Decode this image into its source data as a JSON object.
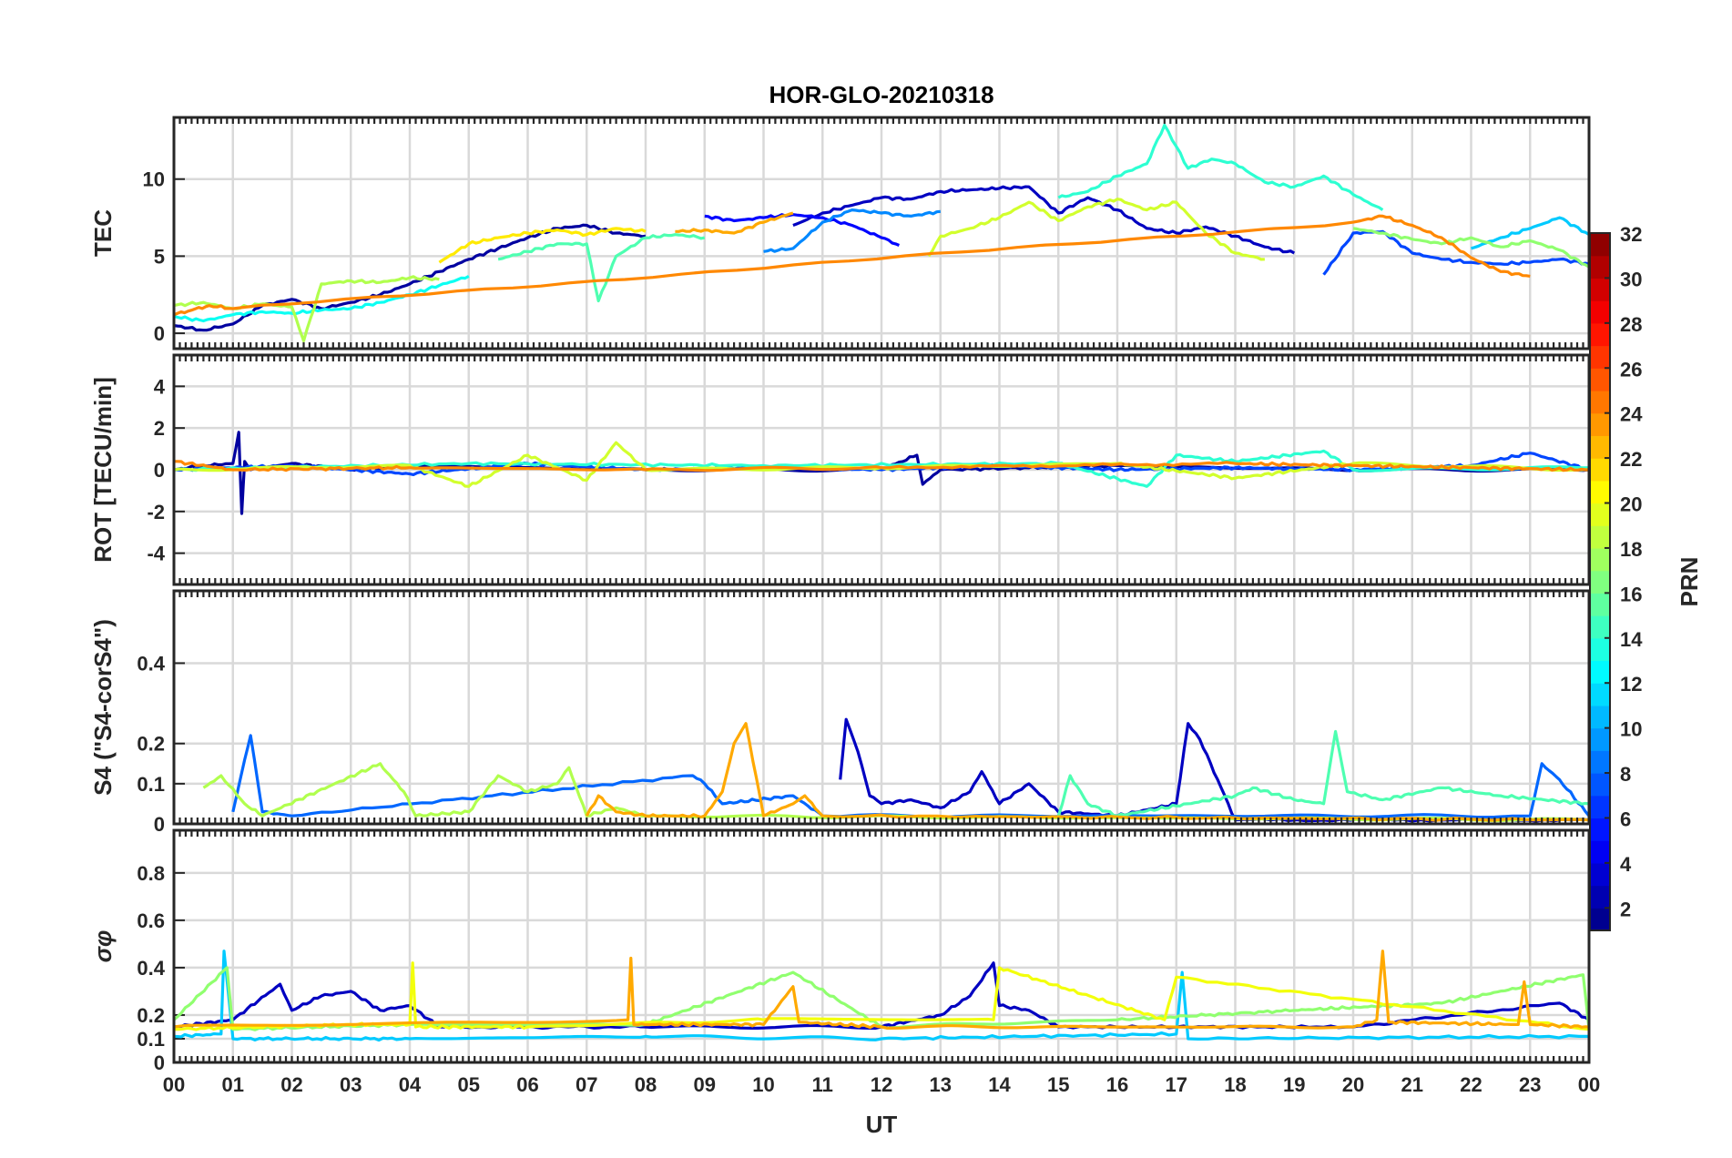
{
  "chart_data": {
    "type": "line",
    "title": "HOR-GLO-20210318",
    "xlabel": "UT",
    "x_ticks": [
      "00",
      "01",
      "02",
      "03",
      "04",
      "05",
      "06",
      "07",
      "08",
      "09",
      "10",
      "11",
      "12",
      "13",
      "14",
      "15",
      "16",
      "17",
      "18",
      "19",
      "20",
      "21",
      "22",
      "23",
      "00"
    ],
    "xlim": [
      0,
      24
    ],
    "colorbar": {
      "label": "PRN",
      "range": [
        1,
        32
      ],
      "ticks": [
        "2",
        "4",
        "6",
        "8",
        "10",
        "12",
        "14",
        "16",
        "18",
        "20",
        "22",
        "24",
        "26",
        "28",
        "30",
        "32"
      ],
      "colormap": "jet"
    },
    "panels": [
      {
        "id": "tec",
        "ylabel": "TEC",
        "ylim": [
          -1,
          14
        ],
        "yticks": [
          0,
          5,
          10
        ],
        "ytick_labels": [
          "0",
          "5",
          "10"
        ],
        "series": [
          {
            "prn": 2,
            "x": [
              0,
              0.5,
              1,
              1.5,
              2,
              2.5,
              3,
              3.5,
              4,
              4.5,
              5,
              5.5,
              6,
              6.5,
              7,
              7.5,
              8
            ],
            "y": [
              0.5,
              0.2,
              0.6,
              1.8,
              2.2,
              1.6,
              2.0,
              2.5,
              3.2,
              4.0,
              4.8,
              5.5,
              6.2,
              6.8,
              7.0,
              6.5,
              6.3
            ]
          },
          {
            "prn": 3,
            "x": [
              10.5,
              11,
              11.5,
              12,
              12.5,
              13,
              13.5,
              14,
              14.5,
              15,
              15.5,
              16,
              16.5,
              17,
              17.5,
              18,
              18.5,
              19
            ],
            "y": [
              7.0,
              7.8,
              8.3,
              8.8,
              8.7,
              9.2,
              9.3,
              9.4,
              9.5,
              7.8,
              8.8,
              8.0,
              6.8,
              6.5,
              6.9,
              6.3,
              5.6,
              5.2
            ]
          },
          {
            "prn": 5,
            "x": [
              9,
              9.5,
              10,
              10.5,
              11,
              11.5,
              12,
              12.3
            ],
            "y": [
              7.6,
              7.3,
              7.5,
              7.7,
              7.5,
              7.0,
              6.2,
              5.7
            ]
          },
          {
            "prn": 7,
            "x": [
              19.5,
              20,
              20.5,
              21,
              21.5,
              22,
              22.5,
              23,
              23.5,
              24
            ],
            "y": [
              3.8,
              6.5,
              6.6,
              5.2,
              4.8,
              4.6,
              4.5,
              4.6,
              4.8,
              4.5
            ]
          },
          {
            "prn": 9,
            "x": [
              10,
              10.5,
              11,
              11.5,
              12,
              12.5,
              13
            ],
            "y": [
              5.3,
              5.5,
              7.2,
              8.0,
              7.8,
              7.6,
              7.9
            ]
          },
          {
            "prn": 11,
            "x": [
              22,
              22.5,
              23,
              23.5,
              24
            ],
            "y": [
              5.5,
              6.2,
              6.8,
              7.5,
              6.4
            ]
          },
          {
            "prn": 13,
            "x": [
              0,
              0.5,
              1,
              1.5,
              2,
              2.5,
              3,
              3.5,
              4,
              4.5,
              5
            ],
            "y": [
              1.1,
              0.8,
              1.2,
              1.4,
              1.3,
              1.5,
              1.6,
              2.0,
              2.5,
              3.1,
              3.7
            ]
          },
          {
            "prn": 14,
            "x": [
              15,
              15.5,
              16,
              16.5,
              16.8,
              17.2,
              17.6,
              18,
              18.5,
              19,
              19.5,
              20,
              20.5
            ],
            "y": [
              8.8,
              9.2,
              10.2,
              11.0,
              13.5,
              10.7,
              11.3,
              11.0,
              9.8,
              9.5,
              10.2,
              9.0,
              8.0
            ]
          },
          {
            "prn": 15,
            "x": [
              5.5,
              6,
              6.5,
              7,
              7.2,
              7.5,
              8,
              8.5,
              9
            ],
            "y": [
              4.8,
              5.3,
              5.8,
              5.8,
              2.1,
              5.0,
              6.2,
              6.4,
              6.2
            ]
          },
          {
            "prn": 17,
            "x": [
              20,
              20.5,
              21,
              21.5,
              22,
              22.5,
              23,
              23.5,
              24
            ],
            "y": [
              6.8,
              6.5,
              6.1,
              5.8,
              6.2,
              5.6,
              6.0,
              5.4,
              4.3
            ]
          },
          {
            "prn": 18,
            "x": [
              0,
              0.5,
              1,
              1.5,
              2,
              2.2,
              2.5,
              3,
              3.5,
              4,
              4.5
            ],
            "y": [
              1.8,
              2.0,
              1.6,
              1.9,
              1.7,
              -0.5,
              3.2,
              3.4,
              3.3,
              3.6,
              3.5
            ]
          },
          {
            "prn": 19,
            "x": [
              12.8,
              13,
              13.5,
              14,
              14.5,
              15,
              15.5,
              16,
              16.5,
              17,
              17.5,
              18,
              18.5
            ],
            "y": [
              5.0,
              6.3,
              6.8,
              7.5,
              8.5,
              7.3,
              8.2,
              8.7,
              8.0,
              8.5,
              6.5,
              5.2,
              4.8
            ]
          },
          {
            "prn": 21,
            "x": [
              4.5,
              5,
              5.5,
              6,
              6.5,
              7,
              7.5,
              8
            ],
            "y": [
              4.6,
              5.8,
              6.2,
              6.5,
              6.7,
              6.4,
              6.8,
              6.6
            ]
          },
          {
            "prn": 23,
            "x": [
              8.5,
              9,
              9.5,
              10,
              10.5
            ],
            "y": [
              6.6,
              6.7,
              6.5,
              7.2,
              7.8
            ]
          },
          {
            "prn": 24,
            "x": [
              0,
              0.3,
              0.6,
              1,
              20,
              20.5,
              21,
              21.5,
              22,
              22.5,
              23
            ],
            "y": [
              1.2,
              1.5,
              1.8,
              1.6,
              7.2,
              7.6,
              7.0,
              6.2,
              4.9,
              4.0,
              3.7
            ]
          }
        ]
      },
      {
        "id": "rot",
        "ylabel": "ROT [TECU/min]",
        "ylim": [
          -5.5,
          5.5
        ],
        "yticks": [
          -4,
          -2,
          0,
          2,
          4
        ],
        "ytick_labels": [
          "-4",
          "-2",
          "0",
          "2",
          "4"
        ],
        "series": [
          {
            "prn": 2,
            "x": [
              0,
              0.5,
              1,
              1.1,
              1.15,
              1.2,
              1.3,
              2,
              3,
              4,
              8,
              12,
              12.6,
              12.7,
              13,
              16,
              20,
              24
            ],
            "y": [
              0,
              0.2,
              0.3,
              1.8,
              -2.1,
              0.4,
              0,
              0.3,
              0,
              0.2,
              0,
              0,
              0.7,
              -0.7,
              0,
              0.2,
              0,
              0
            ]
          },
          {
            "prn": 7,
            "x": [
              0,
              2,
              4,
              6,
              8,
              10,
              12,
              14,
              16,
              18,
              20,
              22,
              23,
              24
            ],
            "y": [
              0,
              0.2,
              -0.2,
              0.3,
              0,
              0.1,
              0,
              0.2,
              0,
              0.1,
              0,
              0.2,
              0.8,
              0
            ]
          },
          {
            "prn": 14,
            "x": [
              0,
              5,
              10,
              15,
              16.5,
              17,
              18,
              19.5,
              20,
              24
            ],
            "y": [
              0,
              0.3,
              0.2,
              0.3,
              -0.8,
              0.7,
              0.4,
              0.9,
              0,
              0.1
            ]
          },
          {
            "prn": 19,
            "x": [
              0,
              4,
              5,
              6,
              7,
              7.5,
              8,
              12,
              16,
              18,
              20,
              24
            ],
            "y": [
              0,
              0.2,
              -0.8,
              0.7,
              -0.5,
              1.3,
              0,
              0.1,
              0.3,
              -0.4,
              0.3,
              0
            ]
          },
          {
            "prn": 24,
            "x": [
              0,
              1,
              4,
              8,
              12,
              18,
              20,
              22,
              24
            ],
            "y": [
              0.4,
              0,
              0.1,
              0,
              0.1,
              0.3,
              0.2,
              0.1,
              0
            ]
          }
        ]
      },
      {
        "id": "s4",
        "ylabel": "S4 (\"S4-corS4\")",
        "ylim": [
          0,
          0.58
        ],
        "yticks": [
          0,
          0.1,
          0.2,
          0.4
        ],
        "ytick_labels": [
          "0",
          "0.1",
          "0.2",
          "0.4"
        ],
        "series": [
          {
            "prn": 3,
            "x": [
              11.3,
              11.4,
              11.6,
              11.8,
              12,
              12.5,
              13,
              13.5,
              13.7,
              14,
              14.5,
              15,
              16,
              17,
              17.2,
              17.4,
              18,
              24
            ],
            "y": [
              0.11,
              0.26,
              0.18,
              0.07,
              0.05,
              0.06,
              0.04,
              0.08,
              0.13,
              0.05,
              0.1,
              0.03,
              0.02,
              0.05,
              0.25,
              0.21,
              0.01,
              0.01
            ]
          },
          {
            "prn": 8,
            "x": [
              1,
              1.2,
              1.3,
              1.5,
              2,
              8.8,
              9,
              9.3,
              10.5,
              11,
              23,
              23.2,
              23.5,
              24
            ],
            "y": [
              0.03,
              0.16,
              0.22,
              0.03,
              0.02,
              0.12,
              0.1,
              0.05,
              0.07,
              0.02,
              0.02,
              0.15,
              0.11,
              0.02
            ]
          },
          {
            "prn": 15,
            "x": [
              15,
              15.2,
              15.5,
              16,
              18,
              18.3,
              19,
              19.5,
              19.7,
              19.9,
              20.5,
              21.5,
              22.5,
              24
            ],
            "y": [
              0.02,
              0.12,
              0.05,
              0.02,
              0.07,
              0.09,
              0.06,
              0.05,
              0.23,
              0.08,
              0.06,
              0.09,
              0.07,
              0.05
            ]
          },
          {
            "prn": 18,
            "x": [
              0.5,
              0.8,
              1.2,
              1.5,
              3.5,
              3.6,
              3.9,
              4.1,
              5,
              5.5,
              6,
              6.5,
              6.7,
              7,
              7.5,
              8,
              24
            ],
            "y": [
              0.09,
              0.12,
              0.05,
              0.02,
              0.15,
              0.13,
              0.08,
              0.02,
              0.03,
              0.12,
              0.08,
              0.1,
              0.14,
              0.02,
              0.04,
              0.02,
              0.01
            ]
          },
          {
            "prn": 23,
            "x": [
              7,
              7.2,
              7.5,
              8,
              9,
              9.3,
              9.5,
              9.7,
              10,
              10.5,
              10.7,
              11,
              24
            ],
            "y": [
              0.02,
              0.07,
              0.03,
              0.02,
              0.02,
              0.08,
              0.2,
              0.25,
              0.02,
              0.05,
              0.07,
              0.02,
              0.01
            ]
          }
        ]
      },
      {
        "id": "sigma",
        "ylabel": "σφ",
        "ylim": [
          0,
          0.98
        ],
        "yticks": [
          0,
          0.1,
          0.2,
          0.4,
          0.6,
          0.8
        ],
        "ytick_labels": [
          "0",
          "0.1",
          "0.2",
          "0.4",
          "0.6",
          "0.8"
        ],
        "series": [
          {
            "prn": 3,
            "x": [
              0,
              1,
              1.8,
              2,
              2.5,
              3,
              3.5,
              4,
              4.5,
              8,
              12,
              13,
              13.5,
              13.9,
              14,
              14.5,
              15,
              20,
              23.5,
              24
            ],
            "y": [
              0.15,
              0.18,
              0.33,
              0.22,
              0.28,
              0.3,
              0.22,
              0.24,
              0.15,
              0.15,
              0.15,
              0.2,
              0.28,
              0.42,
              0.24,
              0.22,
              0.15,
              0.15,
              0.25,
              0.18
            ]
          },
          {
            "prn": 11,
            "x": [
              0,
              0.8,
              0.85,
              1,
              4,
              8,
              12,
              17,
              17.1,
              17.2,
              24
            ],
            "y": [
              0.11,
              0.12,
              0.47,
              0.1,
              0.1,
              0.11,
              0.1,
              0.12,
              0.38,
              0.1,
              0.11
            ]
          },
          {
            "prn": 17,
            "x": [
              0,
              0.9,
              1,
              4,
              8,
              10.5,
              12,
              16,
              19,
              21.5,
              23.9,
              24
            ],
            "y": [
              0.18,
              0.4,
              0.14,
              0.16,
              0.16,
              0.38,
              0.15,
              0.18,
              0.22,
              0.25,
              0.37,
              0.14
            ]
          },
          {
            "prn": 20,
            "x": [
              0,
              3,
              4,
              4.05,
              4.1,
              6,
              10,
              13.9,
              14,
              16.8,
              17,
              24
            ],
            "y": [
              0.14,
              0.16,
              0.16,
              0.42,
              0.15,
              0.15,
              0.18,
              0.18,
              0.4,
              0.18,
              0.36,
              0.14
            ]
          },
          {
            "prn": 23,
            "x": [
              0,
              7.7,
              7.75,
              7.8,
              10,
              10.5,
              10.6,
              12,
              16,
              20,
              20.4,
              20.5,
              20.6,
              22.8,
              22.9,
              23,
              24
            ],
            "y": [
              0.15,
              0.18,
              0.44,
              0.16,
              0.16,
              0.32,
              0.17,
              0.15,
              0.15,
              0.15,
              0.18,
              0.47,
              0.17,
              0.16,
              0.34,
              0.16,
              0.15
            ]
          }
        ]
      }
    ]
  }
}
